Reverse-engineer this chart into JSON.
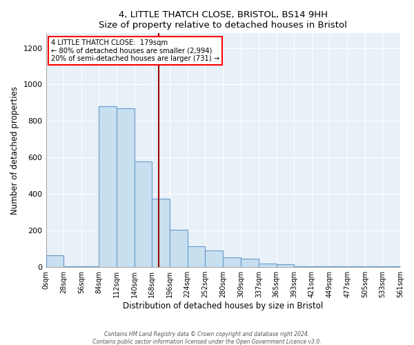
{
  "title": "4, LITTLE THATCH CLOSE, BRISTOL, BS14 9HH",
  "subtitle": "Size of property relative to detached houses in Bristol",
  "xlabel": "Distribution of detached houses by size in Bristol",
  "ylabel": "Number of detached properties",
  "bar_color": "#c8dff0",
  "bar_edge_color": "#6699cc",
  "plot_bg_color": "#e8f0f8",
  "property_line_x": 179,
  "property_line_color": "#990000",
  "annotation_title": "4 LITTLE THATCH CLOSE:  179sqm",
  "annotation_line1": "← 80% of detached houses are smaller (2,994)",
  "annotation_line2": "20% of semi-detached houses are larger (731) →",
  "bin_edges": [
    0,
    28,
    56,
    84,
    112,
    140,
    168,
    196,
    224,
    252,
    280,
    309,
    337,
    365,
    393,
    421,
    449,
    477,
    505,
    533,
    561
  ],
  "bin_counts": [
    65,
    5,
    5,
    880,
    870,
    580,
    375,
    205,
    115,
    90,
    55,
    45,
    20,
    15,
    5,
    5,
    5,
    5,
    5,
    5
  ],
  "ylim": [
    0,
    1280
  ],
  "yticks": [
    0,
    200,
    400,
    600,
    800,
    1000,
    1200
  ],
  "footer_line1": "Contains HM Land Registry data © Crown copyright and database right 2024.",
  "footer_line2": "Contains public sector information licensed under the Open Government Licence v3.0."
}
